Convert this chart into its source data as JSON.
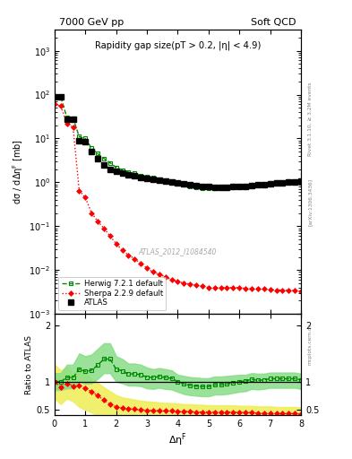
{
  "title_left": "7000 GeV pp",
  "title_right": "Soft QCD",
  "annotation": "ATLAS_2012_I1084540",
  "right_label": "Rivet 3.1.10, ≥ 3.2M events",
  "arxiv_label": "[arXiv:1306.3436]",
  "plot_title": "Rapidity gap size(pT > 0.2, |η| < 4.9)",
  "xlabel": "ΔηF",
  "ylabel_main": "dσ / dΔηF [mb]",
  "ylabel_ratio": "Ratio to ATLAS",
  "atlas_x": [
    0.0,
    0.2,
    0.4,
    0.6,
    0.8,
    1.0,
    1.2,
    1.4,
    1.6,
    1.8,
    2.0,
    2.2,
    2.4,
    2.6,
    2.8,
    3.0,
    3.2,
    3.4,
    3.6,
    3.8,
    4.0,
    4.2,
    4.4,
    4.6,
    4.8,
    5.0,
    5.2,
    5.4,
    5.6,
    5.8,
    6.0,
    6.2,
    6.4,
    6.6,
    6.8,
    7.0,
    7.2,
    7.4,
    7.6,
    7.8,
    8.0
  ],
  "atlas_y": [
    90.0,
    90.0,
    28.0,
    27.0,
    9.0,
    8.5,
    5.0,
    3.5,
    2.5,
    2.0,
    1.8,
    1.6,
    1.5,
    1.4,
    1.3,
    1.25,
    1.2,
    1.1,
    1.05,
    1.0,
    0.95,
    0.92,
    0.88,
    0.85,
    0.82,
    0.8,
    0.78,
    0.78,
    0.78,
    0.8,
    0.8,
    0.82,
    0.85,
    0.88,
    0.9,
    0.92,
    0.95,
    0.97,
    1.0,
    1.0,
    1.05
  ],
  "herwig_x": [
    0.0,
    0.2,
    0.4,
    0.6,
    0.8,
    1.0,
    1.2,
    1.4,
    1.6,
    1.8,
    2.0,
    2.2,
    2.4,
    2.6,
    2.8,
    3.0,
    3.2,
    3.4,
    3.6,
    3.8,
    4.0,
    4.2,
    4.4,
    4.6,
    4.8,
    5.0,
    5.2,
    5.4,
    5.6,
    5.8,
    6.0,
    6.2,
    6.4,
    6.6,
    6.8,
    7.0,
    7.2,
    7.4,
    7.6,
    7.8,
    8.0
  ],
  "herwig_y": [
    90.0,
    90.0,
    30.0,
    29.0,
    11.0,
    10.0,
    6.0,
    4.5,
    3.5,
    2.8,
    2.2,
    1.9,
    1.7,
    1.6,
    1.45,
    1.35,
    1.28,
    1.2,
    1.12,
    1.06,
    0.95,
    0.88,
    0.82,
    0.78,
    0.75,
    0.73,
    0.73,
    0.73,
    0.75,
    0.78,
    0.8,
    0.83,
    0.88,
    0.9,
    0.93,
    0.97,
    1.0,
    1.02,
    1.05,
    1.05,
    1.08
  ],
  "herwig_ratio": [
    1.0,
    1.0,
    1.07,
    1.07,
    1.22,
    1.18,
    1.2,
    1.29,
    1.4,
    1.4,
    1.22,
    1.19,
    1.13,
    1.14,
    1.12,
    1.08,
    1.07,
    1.09,
    1.07,
    1.06,
    1.0,
    0.96,
    0.93,
    0.92,
    0.91,
    0.91,
    0.94,
    0.94,
    0.96,
    0.975,
    1.0,
    1.01,
    1.04,
    1.02,
    1.03,
    1.05,
    1.05,
    1.05,
    1.05,
    1.05,
    1.03
  ],
  "sherpa_x": [
    0.0,
    0.2,
    0.4,
    0.6,
    0.8,
    1.0,
    1.2,
    1.4,
    1.6,
    1.8,
    2.0,
    2.2,
    2.4,
    2.6,
    2.8,
    3.0,
    3.2,
    3.4,
    3.6,
    3.8,
    4.0,
    4.2,
    4.4,
    4.6,
    4.8,
    5.0,
    5.2,
    5.4,
    5.6,
    5.8,
    6.0,
    6.2,
    6.4,
    6.6,
    6.8,
    7.0,
    7.2,
    7.4,
    7.6,
    7.8,
    8.0
  ],
  "sherpa_y": [
    60.0,
    55.0,
    22.0,
    18.0,
    0.65,
    0.45,
    0.2,
    0.13,
    0.09,
    0.06,
    0.04,
    0.028,
    0.022,
    0.018,
    0.014,
    0.011,
    0.009,
    0.008,
    0.007,
    0.006,
    0.0055,
    0.005,
    0.0048,
    0.0045,
    0.0043,
    0.004,
    0.004,
    0.004,
    0.004,
    0.004,
    0.004,
    0.0038,
    0.0038,
    0.0037,
    0.0037,
    0.0036,
    0.0035,
    0.0035,
    0.0034,
    0.0034,
    0.0033
  ],
  "sherpa_ratio": [
    1.0,
    0.9,
    0.97,
    0.92,
    0.93,
    0.88,
    0.82,
    0.75,
    0.67,
    0.6,
    0.55,
    0.53,
    0.52,
    0.51,
    0.5,
    0.49,
    0.49,
    0.48,
    0.48,
    0.48,
    0.47,
    0.47,
    0.47,
    0.46,
    0.46,
    0.46,
    0.46,
    0.46,
    0.46,
    0.46,
    0.45,
    0.45,
    0.45,
    0.44,
    0.44,
    0.44,
    0.43,
    0.43,
    0.43,
    0.43,
    0.42
  ],
  "herwig_band_upper_ratio": [
    1.15,
    1.15,
    1.3,
    1.3,
    1.5,
    1.45,
    1.48,
    1.58,
    1.68,
    1.68,
    1.45,
    1.4,
    1.32,
    1.32,
    1.3,
    1.25,
    1.22,
    1.24,
    1.22,
    1.2,
    1.12,
    1.1,
    1.08,
    1.07,
    1.06,
    1.06,
    1.09,
    1.09,
    1.1,
    1.11,
    1.12,
    1.12,
    1.15,
    1.14,
    1.14,
    1.16,
    1.16,
    1.16,
    1.16,
    1.16,
    1.14
  ],
  "herwig_band_lower_ratio": [
    0.85,
    0.85,
    0.88,
    0.88,
    1.0,
    0.96,
    0.97,
    1.05,
    1.15,
    1.15,
    1.0,
    0.97,
    0.93,
    0.93,
    0.92,
    0.88,
    0.87,
    0.89,
    0.87,
    0.86,
    0.82,
    0.78,
    0.76,
    0.75,
    0.74,
    0.74,
    0.77,
    0.77,
    0.78,
    0.8,
    0.82,
    0.83,
    0.87,
    0.86,
    0.87,
    0.89,
    0.89,
    0.89,
    0.89,
    0.89,
    0.87
  ],
  "sherpa_band_upper_ratio": [
    1.3,
    1.2,
    1.25,
    1.15,
    1.25,
    1.15,
    1.05,
    0.98,
    0.9,
    0.83,
    0.76,
    0.72,
    0.7,
    0.68,
    0.66,
    0.65,
    0.64,
    0.63,
    0.62,
    0.62,
    0.61,
    0.6,
    0.6,
    0.59,
    0.59,
    0.58,
    0.58,
    0.58,
    0.58,
    0.58,
    0.57,
    0.57,
    0.57,
    0.56,
    0.56,
    0.56,
    0.55,
    0.55,
    0.55,
    0.55,
    0.54
  ],
  "sherpa_band_lower_ratio": [
    0.7,
    0.6,
    0.7,
    0.65,
    0.55,
    0.5,
    0.45,
    0.4,
    0.38,
    0.35,
    0.32,
    0.3,
    0.29,
    0.28,
    0.27,
    0.27,
    0.26,
    0.26,
    0.26,
    0.26,
    0.25,
    0.25,
    0.25,
    0.25,
    0.24,
    0.24,
    0.24,
    0.24,
    0.24,
    0.24,
    0.24,
    0.23,
    0.23,
    0.23,
    0.23,
    0.23,
    0.22,
    0.22,
    0.22,
    0.22,
    0.22
  ],
  "atlas_color": "#000000",
  "herwig_color": "#008800",
  "sherpa_color": "#ff0000",
  "herwig_band_color": "#88dd88",
  "sherpa_band_color": "#eeee55",
  "bg_color": "#ffffff",
  "xlim": [
    0,
    8
  ],
  "ylim_main": [
    0.001,
    3000
  ],
  "ylim_ratio": [
    0.4,
    2.2
  ],
  "ratio_yticks": [
    0.5,
    1.0,
    2.0
  ]
}
